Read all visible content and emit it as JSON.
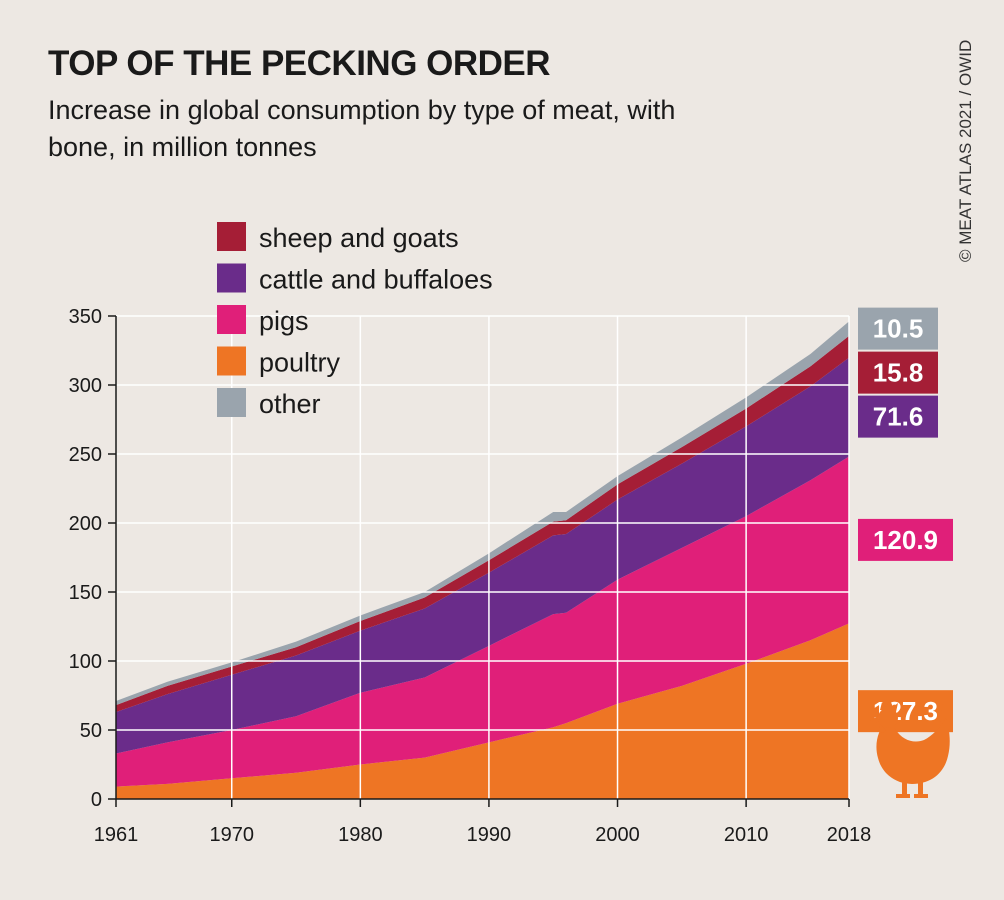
{
  "title": "TOP OF THE PECKING ORDER",
  "subtitle": "Increase in global consumption by type of meat, with bone, in million tonnes",
  "credit": "© MEAT ATLAS 2021 / OWID",
  "chart_data": {
    "type": "area",
    "stacked": true,
    "title": "TOP OF THE PECKING ORDER",
    "subtitle": "Increase in global consumption by type of meat, with bone, in million tonnes",
    "xlim": [
      1961,
      2018
    ],
    "ylim": [
      0,
      350
    ],
    "x_ticks": [
      1961,
      1970,
      1980,
      1990,
      2000,
      2010,
      2018
    ],
    "y_ticks": [
      0,
      50,
      100,
      150,
      200,
      250,
      300,
      350
    ],
    "grid": true,
    "legend_position": "top-left",
    "legend_order": [
      "sheep and goats",
      "cattle and buffaloes",
      "pigs",
      "poultry",
      "other"
    ],
    "x": [
      1961,
      1965,
      1970,
      1975,
      1980,
      1985,
      1990,
      1995,
      1996,
      2000,
      2005,
      2010,
      2015,
      2018
    ],
    "series": [
      {
        "name": "poultry",
        "color": "#ee7524",
        "values": [
          9,
          11,
          15,
          19,
          25,
          30,
          41,
          52,
          55,
          69,
          82,
          98,
          115,
          127.3
        ]
      },
      {
        "name": "pigs",
        "color": "#e01f79",
        "values": [
          24,
          30,
          35,
          41,
          52,
          58,
          70,
          82,
          80,
          90,
          100,
          107,
          116,
          120.9
        ]
      },
      {
        "name": "cattle and buffaloes",
        "color": "#6a2c8a",
        "values": [
          30,
          35,
          40,
          44,
          45,
          50,
          53,
          57,
          57,
          58,
          61,
          65,
          68,
          71.6
        ]
      },
      {
        "name": "sheep and goats",
        "color": "#a51e36",
        "values": [
          5,
          6,
          6,
          6,
          7,
          8,
          9,
          10,
          10,
          11,
          12,
          13,
          14.5,
          15.8
        ]
      },
      {
        "name": "other",
        "color": "#9aa4ad",
        "values": [
          3,
          3,
          3,
          4,
          4,
          4,
          5,
          7,
          6,
          6,
          7,
          8,
          9,
          10.5
        ]
      }
    ],
    "end_labels": [
      {
        "series": "other",
        "label": "10.5",
        "color": "#9aa4ad"
      },
      {
        "series": "sheep and goats",
        "label": "15.8",
        "color": "#a51e36"
      },
      {
        "series": "cattle and buffaloes",
        "label": "71.6",
        "color": "#6a2c8a"
      },
      {
        "series": "pigs",
        "label": "120.9",
        "color": "#e01f79"
      },
      {
        "series": "poultry",
        "label": "127.3",
        "color": "#ee7524"
      }
    ],
    "icon": "chicken-icon",
    "icon_color": "#ee7524"
  }
}
